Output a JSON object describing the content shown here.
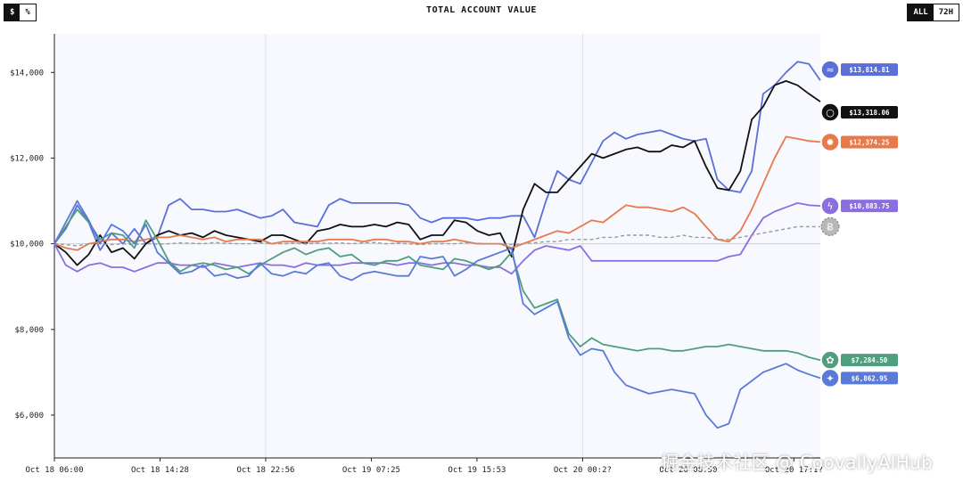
{
  "controls": {
    "unit_options": [
      "$",
      "%"
    ],
    "unit_selected": "$",
    "range_options": [
      "ALL",
      "72H"
    ],
    "range_selected": "ALL"
  },
  "watermark": "掘金技术社区 @ CoovallyAIHub",
  "chart_data": {
    "type": "line",
    "title": "TOTAL ACCOUNT VALUE",
    "xlabel": "",
    "ylabel": "",
    "x_tick_labels": [
      "Oct 18 06:00",
      "Oct 18 14:28",
      "Oct 18 22:56",
      "Oct 19 07:25",
      "Oct 19 15:53",
      "Oct 20 00:2?",
      "Oct 20 08:50",
      "Oct 20 17:1?"
    ],
    "y_tick_labels": [
      "$6,000",
      "$8,000",
      "$10,000",
      "$12,000",
      "$14,000"
    ],
    "ylim": [
      5000,
      14900
    ],
    "x_points": 68,
    "baseline": 10000,
    "grid": "vertical lines at Oct 18 22:56 and Oct 20 00:2?",
    "series": [
      {
        "name": "",
        "color": "#5b6fd6",
        "end_label": "$13,814.81",
        "icon": "whale-icon",
        "values": [
          10000,
          10350,
          10900,
          10500,
          9850,
          10250,
          10000,
          10350,
          10000,
          10150,
          10900,
          11050,
          10800,
          10800,
          10750,
          10750,
          10800,
          10700,
          10600,
          10650,
          10800,
          10500,
          10450,
          10400,
          10900,
          11050,
          10950,
          10950,
          10950,
          10950,
          10950,
          10900,
          10600,
          10500,
          10600,
          10600,
          10600,
          10550,
          10600,
          10600,
          10650,
          10650,
          10150,
          11000,
          11700,
          11500,
          11400,
          11900,
          12400,
          12600,
          12450,
          12550,
          12600,
          12650,
          12550,
          12450,
          12400,
          12450,
          11500,
          11250,
          11200,
          11700,
          13500,
          13700,
          14000,
          14250,
          14200,
          13814.81
        ]
      },
      {
        "name": "",
        "color": "#111111",
        "end_label": "$13,318.06",
        "icon": "openai-style-icon",
        "values": [
          10000,
          9800,
          9500,
          9750,
          10200,
          9800,
          9900,
          9650,
          10000,
          10200,
          10300,
          10200,
          10250,
          10150,
          10300,
          10200,
          10150,
          10100,
          10050,
          10200,
          10200,
          10100,
          10000,
          10300,
          10350,
          10450,
          10400,
          10400,
          10450,
          10400,
          10500,
          10450,
          10100,
          10200,
          10200,
          10550,
          10500,
          10300,
          10200,
          10250,
          9700,
          10800,
          11400,
          11200,
          11200,
          11500,
          11800,
          12100,
          12000,
          12100,
          12200,
          12250,
          12150,
          12150,
          12300,
          12250,
          12400,
          11800,
          11300,
          11250,
          11700,
          12900,
          13200,
          13700,
          13800,
          13700,
          13500,
          13318.06
        ]
      },
      {
        "name": "",
        "color": "#e8794a",
        "end_label": "$12,374.25",
        "icon": "sunburst-icon",
        "values": [
          10000,
          9900,
          9850,
          10000,
          10050,
          10100,
          10100,
          10050,
          10100,
          10150,
          10150,
          10200,
          10150,
          10100,
          10150,
          10050,
          10100,
          10100,
          10100,
          10000,
          10050,
          10050,
          10050,
          10050,
          10100,
          10100,
          10100,
          10050,
          10100,
          10100,
          10050,
          10050,
          10000,
          10050,
          10050,
          10100,
          10050,
          10000,
          10000,
          10000,
          9900,
          10000,
          10100,
          10200,
          10300,
          10250,
          10400,
          10550,
          10500,
          10700,
          10900,
          10850,
          10850,
          10800,
          10750,
          10850,
          10700,
          10400,
          10100,
          10050,
          10300,
          10800,
          11400,
          12000,
          12500,
          12450,
          12400,
          12374.25
        ]
      },
      {
        "name": "",
        "color": "#8b6fe0",
        "end_label": "$10,883.75",
        "icon": "lightning-icon",
        "values": [
          10000,
          9500,
          9350,
          9500,
          9550,
          9450,
          9450,
          9350,
          9450,
          9550,
          9550,
          9500,
          9500,
          9450,
          9550,
          9500,
          9450,
          9500,
          9550,
          9500,
          9500,
          9450,
          9550,
          9500,
          9500,
          9500,
          9550,
          9550,
          9550,
          9550,
          9500,
          9550,
          9550,
          9500,
          9550,
          9550,
          9500,
          9500,
          9450,
          9450,
          9300,
          9600,
          9850,
          9950,
          9900,
          9850,
          9950,
          9600,
          9600,
          9600,
          9600,
          9600,
          9600,
          9600,
          9600,
          9600,
          9600,
          9600,
          9600,
          9700,
          9750,
          10200,
          10600,
          10750,
          10850,
          10950,
          10900,
          10883.75
        ]
      },
      {
        "name": "",
        "color": "#9a9a9a",
        "end_label": "",
        "icon": "bitcoin-icon",
        "dashed": true,
        "values": [
          10000,
          9980,
          9950,
          10000,
          10000,
          9980,
          10000,
          9980,
          10000,
          9990,
          10000,
          10020,
          10010,
          10000,
          10030,
          10010,
          10000,
          10000,
          10020,
          10000,
          10000,
          10010,
          10000,
          10010,
          10010,
          10020,
          10000,
          10020,
          10030,
          10000,
          10010,
          10000,
          9980,
          10000,
          10000,
          10000,
          10020,
          10010,
          10000,
          10000,
          9980,
          10000,
          10020,
          10050,
          10050,
          10100,
          10100,
          10100,
          10150,
          10150,
          10200,
          10200,
          10200,
          10150,
          10150,
          10200,
          10150,
          10150,
          10100,
          10100,
          10150,
          10200,
          10250,
          10300,
          10350,
          10400,
          10400,
          10400
        ]
      },
      {
        "name": "",
        "color": "#4f9e7c",
        "end_label": "$7,284.50",
        "icon": "openai-swirl-icon",
        "values": [
          10000,
          10400,
          10800,
          10500,
          10100,
          10250,
          10200,
          9900,
          10550,
          10100,
          9600,
          9350,
          9500,
          9550,
          9500,
          9400,
          9450,
          9300,
          9500,
          9650,
          9800,
          9900,
          9750,
          9850,
          9900,
          9700,
          9750,
          9550,
          9500,
          9600,
          9600,
          9700,
          9500,
          9450,
          9400,
          9650,
          9600,
          9500,
          9400,
          9500,
          9800,
          8900,
          8500,
          8600,
          8700,
          7900,
          7600,
          7800,
          7650,
          7600,
          7550,
          7500,
          7550,
          7550,
          7500,
          7500,
          7550,
          7600,
          7600,
          7650,
          7600,
          7550,
          7500,
          7500,
          7500,
          7450,
          7350,
          7284.5
        ]
      },
      {
        "name": "",
        "color": "#5a7ad9",
        "end_label": "$6,862.95",
        "icon": "sparkle-icon",
        "values": [
          10000,
          10500,
          11000,
          10550,
          10000,
          10450,
          10300,
          10000,
          10450,
          9800,
          9550,
          9300,
          9350,
          9500,
          9250,
          9300,
          9200,
          9250,
          9550,
          9300,
          9250,
          9350,
          9300,
          9500,
          9550,
          9250,
          9150,
          9300,
          9350,
          9300,
          9250,
          9250,
          9700,
          9650,
          9700,
          9250,
          9400,
          9600,
          9700,
          9800,
          9900,
          8600,
          8350,
          8500,
          8650,
          7800,
          7400,
          7550,
          7500,
          7000,
          6700,
          6600,
          6500,
          6550,
          6600,
          6550,
          6500,
          6000,
          5700,
          5800,
          6600,
          6800,
          7000,
          7100,
          7200,
          7050,
          6950,
          6862.95
        ]
      }
    ]
  }
}
